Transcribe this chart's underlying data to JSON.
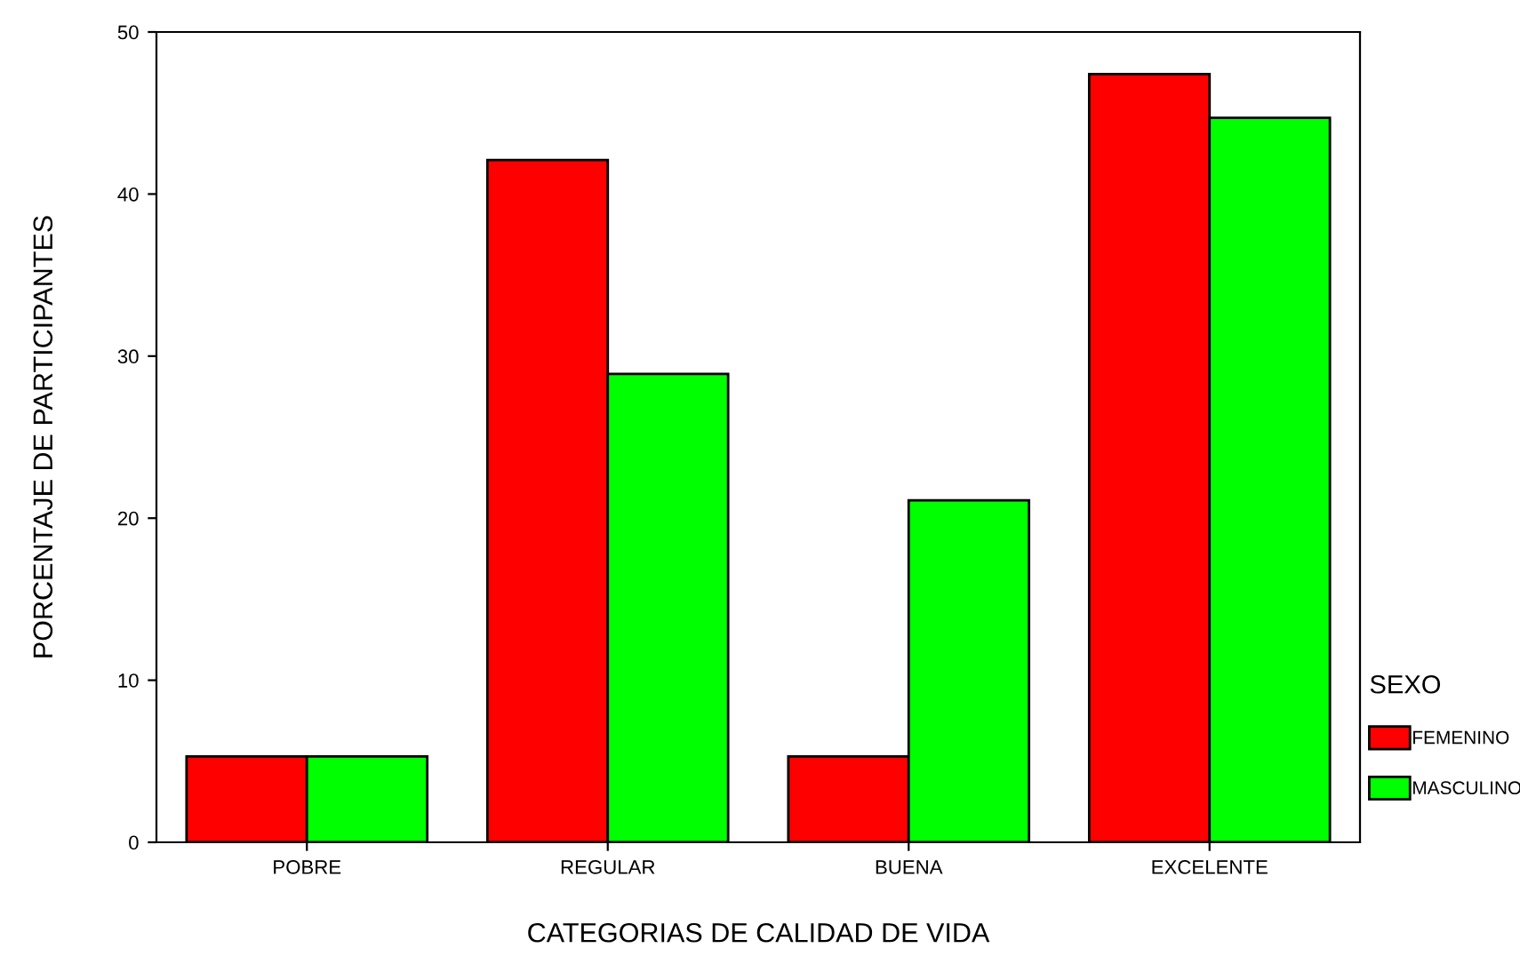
{
  "chart_data": {
    "type": "bar",
    "xlabel": "CATEGORIAS DE CALIDAD DE VIDA",
    "ylabel": "PORCENTAJE DE PARTICIPANTES",
    "legend_title": "SEXO",
    "categories": [
      "POBRE",
      "REGULAR",
      "BUENA",
      "EXCELENTE"
    ],
    "series": [
      {
        "name": "FEMENINO",
        "color": "#ff0000",
        "values": [
          5.3,
          42.1,
          5.3,
          47.4
        ]
      },
      {
        "name": "MASCULINO",
        "color": "#00ff00",
        "values": [
          5.3,
          28.9,
          21.1,
          44.7
        ]
      }
    ],
    "ylim": [
      0,
      50
    ],
    "yticks": [
      0,
      10,
      20,
      30,
      40,
      50
    ],
    "grid": false,
    "legend": "right"
  }
}
